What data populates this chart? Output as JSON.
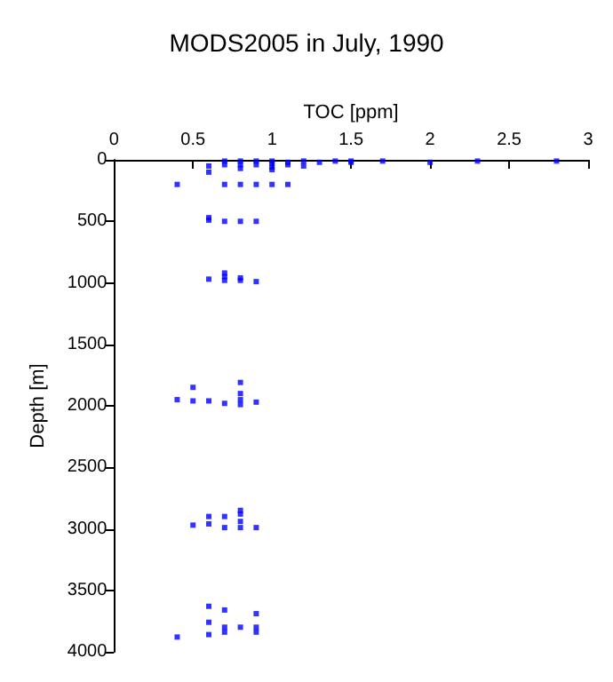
{
  "chart_data": {
    "type": "scatter",
    "title": "MODS2005 in July, 1990",
    "xlabel": "TOC [ppm]",
    "ylabel": "Depth [m]",
    "xlim": [
      0,
      3
    ],
    "xticks": [
      0,
      0.5,
      1,
      1.5,
      2,
      2.5,
      3
    ],
    "ylim": [
      4000,
      0
    ],
    "yticks": [
      0,
      500,
      1000,
      1500,
      2000,
      2500,
      3000,
      3500,
      4000
    ],
    "grid": false,
    "marker": "square",
    "series": [
      {
        "color": "#0000ff",
        "x": [
          0.6,
          0.6,
          0.7,
          0.7,
          0.8,
          0.8,
          0.8,
          0.9,
          0.9,
          1.0,
          1.0,
          1.0,
          1.0,
          1.1,
          1.1,
          1.2,
          1.2,
          1.3,
          1.4,
          1.5,
          1.5,
          1.7,
          2.0,
          2.3,
          2.8,
          0.4,
          0.7,
          0.8,
          0.9,
          1.0,
          1.1,
          0.6,
          0.6,
          0.7,
          0.8,
          0.9,
          0.6,
          0.7,
          0.7,
          0.7,
          0.8,
          0.8,
          0.9,
          0.4,
          0.5,
          0.5,
          0.6,
          0.7,
          0.8,
          0.8,
          0.8,
          0.8,
          0.9,
          0.5,
          0.6,
          0.6,
          0.7,
          0.7,
          0.8,
          0.8,
          0.8,
          0.8,
          0.9,
          0.4,
          0.6,
          0.6,
          0.6,
          0.7,
          0.7,
          0.7,
          0.8,
          0.9,
          0.9,
          0.9
        ],
        "values": [
          50,
          100,
          10,
          40,
          10,
          40,
          70,
          10,
          40,
          10,
          30,
          60,
          80,
          20,
          40,
          10,
          50,
          20,
          10,
          10,
          20,
          10,
          20,
          10,
          10,
          200,
          200,
          200,
          200,
          200,
          200,
          470,
          490,
          500,
          500,
          500,
          970,
          920,
          950,
          980,
          960,
          980,
          990,
          1950,
          1850,
          1960,
          1960,
          1980,
          1810,
          1900,
          1950,
          1990,
          1970,
          2970,
          2900,
          2960,
          2900,
          2990,
          2850,
          2880,
          2940,
          2990,
          2990,
          3880,
          3630,
          3760,
          3860,
          3660,
          3800,
          3840,
          3800,
          3690,
          3800,
          3840
        ]
      }
    ]
  }
}
